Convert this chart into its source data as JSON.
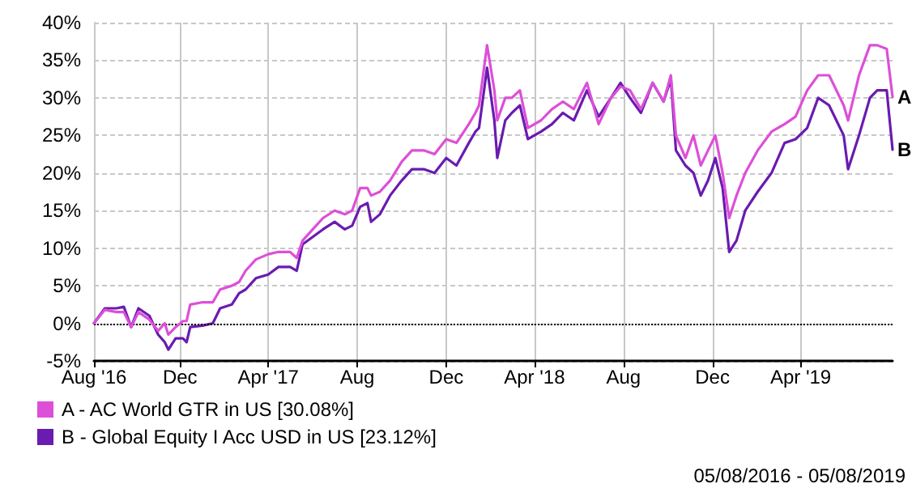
{
  "chart_data": {
    "type": "line",
    "x": [
      "2016-08-05",
      "2016-08-20",
      "2016-09-05",
      "2016-09-15",
      "2016-09-25",
      "2016-10-05",
      "2016-10-20",
      "2016-11-01",
      "2016-11-10",
      "2016-11-15",
      "2016-11-25",
      "2016-12-05",
      "2016-12-10",
      "2016-12-15",
      "2017-01-01",
      "2017-01-15",
      "2017-01-25",
      "2017-02-10",
      "2017-02-20",
      "2017-03-01",
      "2017-03-15",
      "2017-04-01",
      "2017-04-15",
      "2017-05-01",
      "2017-05-10",
      "2017-05-18",
      "2017-06-01",
      "2017-06-15",
      "2017-07-01",
      "2017-07-15",
      "2017-07-25",
      "2017-08-05",
      "2017-08-15",
      "2017-08-20",
      "2017-09-01",
      "2017-09-15",
      "2017-10-01",
      "2017-10-15",
      "2017-11-01",
      "2017-11-15",
      "2017-12-01",
      "2017-12-15",
      "2018-01-01",
      "2018-01-10",
      "2018-01-15",
      "2018-01-26",
      "2018-02-05",
      "2018-02-09",
      "2018-02-20",
      "2018-03-01",
      "2018-03-12",
      "2018-03-23",
      "2018-04-10",
      "2018-04-25",
      "2018-05-10",
      "2018-05-25",
      "2018-06-12",
      "2018-06-28",
      "2018-07-15",
      "2018-07-28",
      "2018-08-10",
      "2018-08-25",
      "2018-09-10",
      "2018-09-25",
      "2018-10-05",
      "2018-10-12",
      "2018-10-25",
      "2018-11-05",
      "2018-11-15",
      "2018-11-25",
      "2018-12-05",
      "2018-12-15",
      "2018-12-24",
      "2019-01-03",
      "2019-01-15",
      "2019-02-01",
      "2019-02-20",
      "2019-03-10",
      "2019-03-25",
      "2019-04-10",
      "2019-04-25",
      "2019-05-10",
      "2019-05-30",
      "2019-06-05",
      "2019-06-20",
      "2019-07-05",
      "2019-07-15",
      "2019-07-28",
      "2019-08-05"
    ],
    "series": [
      {
        "name": "A - AC World GTR in US [30.08%]",
        "color": "#dd4fd8",
        "values": [
          0,
          1.8,
          1.5,
          1.5,
          -0.5,
          1.5,
          0.5,
          -1,
          0,
          -1.5,
          -0.5,
          0.3,
          0.3,
          2.5,
          2.8,
          2.8,
          4.5,
          5,
          5.5,
          7,
          8.5,
          9.2,
          9.5,
          9.5,
          8.7,
          11,
          12.5,
          14,
          15,
          14.5,
          15,
          18,
          18,
          17,
          17.5,
          19,
          21.5,
          23,
          23,
          22.5,
          24.5,
          24,
          26.5,
          28,
          29,
          37,
          31,
          27,
          30,
          30,
          31,
          26,
          27,
          28.5,
          29.5,
          28.5,
          32,
          26.5,
          30,
          31.5,
          31,
          28.5,
          32,
          29.5,
          33,
          25,
          22,
          25,
          21,
          23,
          25,
          20,
          14,
          17,
          20,
          23,
          25.5,
          26.5,
          27.5,
          31,
          33,
          33,
          29,
          27,
          33,
          37,
          37,
          36.5,
          30.1
        ]
      },
      {
        "name": "B - Global Equity I Acc USD in US [23.12%]",
        "color": "#6a1bb0",
        "values": [
          0,
          2,
          2,
          2.2,
          -0.5,
          2,
          1,
          -1.5,
          -2.5,
          -3.5,
          -2,
          -2,
          -2.5,
          -0.5,
          -0.3,
          0,
          2,
          2.5,
          4,
          4.5,
          6,
          6.5,
          7.5,
          7.5,
          7,
          10.5,
          11.5,
          12.5,
          13.5,
          12.5,
          13,
          15.5,
          16,
          13.5,
          14.5,
          17,
          19,
          20.5,
          20.5,
          20,
          22,
          21,
          24,
          25.5,
          26,
          34,
          27,
          22,
          27,
          28,
          29,
          24.5,
          25.5,
          26.5,
          28,
          27,
          31,
          27.5,
          30,
          32,
          30,
          28,
          32,
          29.5,
          32.5,
          23,
          21,
          20,
          17,
          19,
          22,
          18,
          9.5,
          11,
          15,
          17.5,
          20,
          24,
          24.5,
          26,
          30,
          29,
          25,
          20.5,
          25,
          30,
          31,
          31,
          23.1
        ]
      }
    ],
    "xlim": [
      "2016-08-05",
      "2019-08-05"
    ],
    "xticks": [
      {
        "value": "2016-08-05",
        "label": "Aug '16"
      },
      {
        "value": "2016-12-01",
        "label": "Dec"
      },
      {
        "value": "2017-04-01",
        "label": "Apr '17"
      },
      {
        "value": "2017-08-01",
        "label": "Aug"
      },
      {
        "value": "2017-12-01",
        "label": "Dec"
      },
      {
        "value": "2018-04-01",
        "label": "Apr '18"
      },
      {
        "value": "2018-08-01",
        "label": "Aug"
      },
      {
        "value": "2018-12-01",
        "label": "Dec"
      },
      {
        "value": "2019-04-01",
        "label": "Apr '19"
      }
    ],
    "ylim": [
      -5,
      40
    ],
    "yticks": [
      {
        "value": -5,
        "label": "-5%"
      },
      {
        "value": 0,
        "label": "0%"
      },
      {
        "value": 5,
        "label": "5%"
      },
      {
        "value": 10,
        "label": "10%"
      },
      {
        "value": 15,
        "label": "15%"
      },
      {
        "value": 20,
        "label": "20%"
      },
      {
        "value": 25,
        "label": "25%"
      },
      {
        "value": 30,
        "label": "30%"
      },
      {
        "value": 35,
        "label": "35%"
      },
      {
        "value": 40,
        "label": "40%"
      }
    ],
    "ref_lines": [
      {
        "axis": "y",
        "value": 0,
        "color": "#000000",
        "line_style": "dotted"
      }
    ],
    "annotations": [
      {
        "text": "A",
        "x": "2019-08-05",
        "y": 30.1
      },
      {
        "text": "B",
        "x": "2019-08-05",
        "y": 23.1
      },
      "05/08/2016 - 05/08/2019"
    ],
    "grid": true,
    "legend": "bottom left",
    "marker": "none",
    "line_style": "solid"
  }
}
